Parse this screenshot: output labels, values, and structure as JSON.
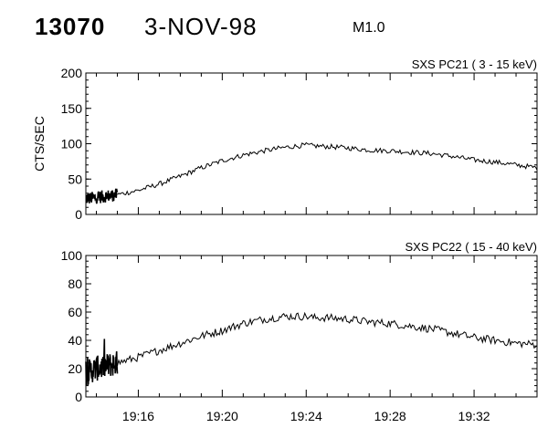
{
  "header": {
    "event_id": "13070",
    "date": "3-NOV-98",
    "flare_class": "M1.0"
  },
  "chart_data": [
    {
      "type": "line",
      "title": "SXS PC21  (  3 - 15 keV)",
      "ylabel": "CTS/SEC",
      "xlabel": "",
      "x_range": [
        "19:13:30",
        "19:35:00"
      ],
      "ylim": [
        0,
        200
      ],
      "yticks": [
        0,
        50,
        100,
        150,
        200
      ],
      "xticks": [],
      "grid": false,
      "series": [
        {
          "x": [
            "19:13:30",
            "19:14:00",
            "19:15:00",
            "19:16:00",
            "19:17:00",
            "19:18:00",
            "19:19:00",
            "19:20:00",
            "19:21:00",
            "19:22:00",
            "19:23:00",
            "19:24:00",
            "19:24:20",
            "19:25:00",
            "19:26:00",
            "19:27:00",
            "19:28:00",
            "19:29:00",
            "19:30:00",
            "19:31:00",
            "19:32:00",
            "19:33:00",
            "19:34:00",
            "19:35:00"
          ],
          "values": [
            22,
            24,
            28,
            34,
            43,
            54,
            66,
            76,
            84,
            90,
            95,
            98,
            97,
            96,
            94,
            91,
            90,
            88,
            86,
            82,
            77,
            74,
            70,
            66
          ]
        }
      ]
    },
    {
      "type": "line",
      "title": "SXS PC22  ( 15 - 40 keV)",
      "ylabel": "",
      "xlabel": "",
      "x_range": [
        "19:13:30",
        "19:35:00"
      ],
      "ylim": [
        0,
        100
      ],
      "yticks": [
        0,
        20,
        40,
        60,
        80,
        100
      ],
      "xticks": [
        "19:16",
        "19:20",
        "19:24",
        "19:28",
        "19:32"
      ],
      "grid": false,
      "series": [
        {
          "x": [
            "19:13:30",
            "19:14:00",
            "19:15:00",
            "19:16:00",
            "19:17:00",
            "19:18:00",
            "19:19:00",
            "19:20:00",
            "19:21:00",
            "19:22:00",
            "19:23:00",
            "19:24:00",
            "19:24:20",
            "19:25:00",
            "19:26:00",
            "19:27:00",
            "19:28:00",
            "19:29:00",
            "19:30:00",
            "19:31:00",
            "19:32:00",
            "19:33:00",
            "19:34:00",
            "19:35:00"
          ],
          "values": [
            17,
            20,
            24,
            28,
            33,
            38,
            43,
            47,
            52,
            55,
            57,
            57,
            56,
            56,
            55,
            53,
            52,
            50,
            48,
            45,
            42,
            40,
            38,
            37
          ]
        }
      ]
    }
  ]
}
